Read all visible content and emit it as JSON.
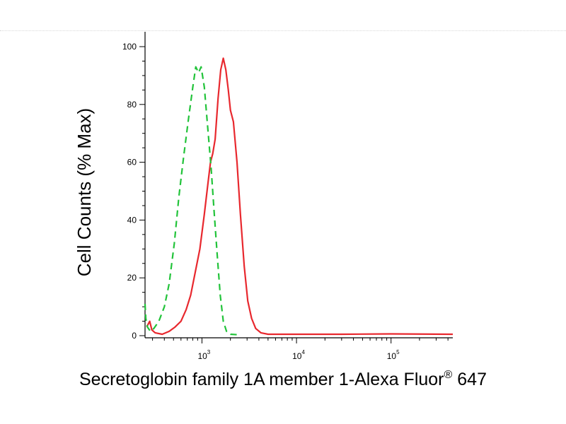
{
  "chart_data": {
    "type": "line",
    "title": "",
    "xlabel": {
      "text": "Secretoglobin family 1A member 1-Alexa Fluor",
      "superscript": "®",
      "suffix": " 647"
    },
    "ylabel": "Cell Counts (% Max)",
    "xscale": "log",
    "xlim": [
      250,
      450000
    ],
    "ylim": [
      0,
      100
    ],
    "yticks": [
      0,
      20,
      40,
      60,
      80,
      100
    ],
    "xticks": [
      {
        "value": 1000,
        "base": "10",
        "exp": "3"
      },
      {
        "value": 10000,
        "base": "10",
        "exp": "4"
      },
      {
        "value": 100000,
        "base": "10",
        "exp": "5"
      }
    ],
    "grid": false,
    "legend": "none",
    "series": [
      {
        "color": "#e8282e",
        "dash": "solid",
        "points": [
          [
            260,
            3
          ],
          [
            280,
            5
          ],
          [
            295,
            2
          ],
          [
            320,
            1
          ],
          [
            380,
            0.5
          ],
          [
            450,
            1.5
          ],
          [
            520,
            3
          ],
          [
            600,
            5
          ],
          [
            680,
            9
          ],
          [
            760,
            14
          ],
          [
            850,
            22
          ],
          [
            950,
            30
          ],
          [
            1060,
            42
          ],
          [
            1150,
            52
          ],
          [
            1230,
            60
          ],
          [
            1300,
            63
          ],
          [
            1380,
            68
          ],
          [
            1480,
            82
          ],
          [
            1580,
            92
          ],
          [
            1680,
            96
          ],
          [
            1790,
            92
          ],
          [
            1900,
            85
          ],
          [
            2000,
            78
          ],
          [
            2150,
            74
          ],
          [
            2350,
            60
          ],
          [
            2550,
            42
          ],
          [
            2800,
            24
          ],
          [
            3050,
            12
          ],
          [
            3350,
            6
          ],
          [
            3700,
            2.5
          ],
          [
            4200,
            1
          ],
          [
            5000,
            0.5
          ],
          [
            6000,
            0.5
          ],
          [
            10000,
            0.5
          ],
          [
            30000,
            0.5
          ],
          [
            100000,
            0.6
          ],
          [
            450000,
            0.5
          ]
        ]
      },
      {
        "color": "#22c33a",
        "dash": "dashed",
        "points": [
          [
            250,
            11
          ],
          [
            255,
            6
          ],
          [
            265,
            3
          ],
          [
            285,
            1.5
          ],
          [
            310,
            2.5
          ],
          [
            350,
            5
          ],
          [
            400,
            10
          ],
          [
            450,
            18
          ],
          [
            510,
            32
          ],
          [
            570,
            48
          ],
          [
            640,
            62
          ],
          [
            720,
            75
          ],
          [
            800,
            86
          ],
          [
            860,
            93
          ],
          [
            920,
            91
          ],
          [
            980,
            93
          ],
          [
            1060,
            86
          ],
          [
            1150,
            72
          ],
          [
            1250,
            58
          ],
          [
            1350,
            42
          ],
          [
            1450,
            28
          ],
          [
            1560,
            14
          ],
          [
            1680,
            5
          ],
          [
            1820,
            1.5
          ],
          [
            2000,
            0.5
          ],
          [
            2500,
            0.3
          ]
        ]
      }
    ]
  }
}
